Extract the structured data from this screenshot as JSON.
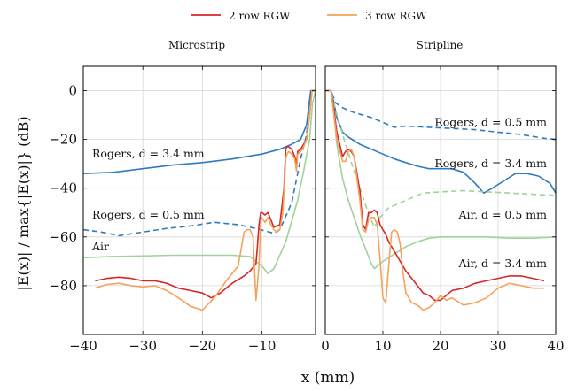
{
  "legend": [
    {
      "label": "2 row RGW",
      "color": "#d62728"
    },
    {
      "label": "3 row RGW",
      "color": "#f5a25d"
    }
  ],
  "xlabel": "x (mm)",
  "ylabel": "|E(x)| / max{|E(x)|} (dB)",
  "chart_data": [
    {
      "type": "line",
      "title": "Microstrip",
      "xlim": [
        -40,
        -1
      ],
      "ylim": [
        -100,
        10
      ],
      "xticks": [
        -40,
        -30,
        -20,
        -10
      ],
      "yticks": [
        0,
        -20,
        -40,
        -60,
        -80
      ],
      "grid": true,
      "annotations": [
        {
          "text": "Rogers, d = 3.4 mm",
          "x": -39,
          "y": -26
        },
        {
          "text": "Rogers, d = 0.5 mm",
          "x": -39,
          "y": -51
        },
        {
          "text": "Air",
          "x": -39,
          "y": -64
        }
      ],
      "series": [
        {
          "name": "Rogers, d = 3.4 mm",
          "color": "#2f7bbf",
          "dash": false,
          "x": [
            -40,
            -35,
            -30,
            -25,
            -20,
            -15,
            -10,
            -7,
            -5,
            -3.5,
            -2.5,
            -1.8,
            -1
          ],
          "y": [
            -34,
            -33.5,
            -32,
            -30.5,
            -29.5,
            -28,
            -26,
            -24,
            -22,
            -20,
            -14,
            0,
            0
          ]
        },
        {
          "name": "Rogers, d = 0.5 mm",
          "color": "#2f7bbf",
          "dash": true,
          "x": [
            -40,
            -37,
            -34,
            -30,
            -26,
            -22,
            -18,
            -14,
            -11,
            -8,
            -7,
            -5,
            -3.5,
            -2.5,
            -1.8,
            -1
          ],
          "y": [
            -57,
            -58,
            -59.5,
            -58,
            -56.5,
            -55.5,
            -54,
            -55,
            -56.5,
            -58.5,
            -57,
            -46,
            -28,
            -18,
            0,
            0
          ]
        },
        {
          "name": "Air",
          "color": "#9fd39a",
          "dash": false,
          "x": [
            -40,
            -35,
            -30,
            -25,
            -20,
            -15,
            -12,
            -10,
            -9,
            -8,
            -6,
            -4,
            -3,
            -2,
            -1.5,
            -1
          ],
          "y": [
            -68.5,
            -68,
            -67.8,
            -67.5,
            -67.5,
            -67.5,
            -68,
            -72,
            -75,
            -73,
            -62,
            -45,
            -33,
            -20,
            -5,
            0
          ]
        },
        {
          "name": "2 row RGW",
          "color": "#d62728",
          "dash": false,
          "x": [
            -38,
            -36,
            -34,
            -32,
            -30,
            -28,
            -26,
            -24,
            -22,
            -20,
            -18.5,
            -17,
            -15,
            -13,
            -12,
            -11,
            -10.8,
            -10.5,
            -10.2,
            -10,
            -9.5,
            -9,
            -8.5,
            -8,
            -7,
            -6.3,
            -6,
            -5.8,
            -5.5,
            -5,
            -4.5,
            -4.2,
            -4,
            -3.5,
            -3,
            -2.5,
            -2,
            -1.6,
            -1.3,
            -1
          ],
          "y": [
            -78,
            -77,
            -76.5,
            -77,
            -78,
            -78,
            -79,
            -81,
            -82,
            -83,
            -85,
            -83,
            -79,
            -76,
            -74,
            -71,
            -65,
            -55,
            -50,
            -50,
            -51,
            -50,
            -53,
            -56,
            -55,
            -40,
            -24,
            -23,
            -23,
            -24,
            -27,
            -30,
            -25,
            -24,
            -22,
            -20,
            -10,
            0,
            0,
            0
          ]
        },
        {
          "name": "3 row RGW",
          "color": "#f5a25d",
          "dash": false,
          "x": [
            -38,
            -36,
            -34,
            -32,
            -30,
            -28,
            -26,
            -24,
            -22,
            -20,
            -18,
            -16,
            -14,
            -13,
            -12.5,
            -12,
            -11.5,
            -11,
            -10.5,
            -10.2,
            -10,
            -9.5,
            -9,
            -8.5,
            -8,
            -7.5,
            -7,
            -6.5,
            -6,
            -5.8,
            -5.5,
            -5,
            -4.5,
            -4.2,
            -4,
            -3.5,
            -3,
            -2.5,
            -2,
            -1.6,
            -1.3,
            -1
          ],
          "y": [
            -81,
            -79.5,
            -79,
            -80,
            -80.5,
            -80,
            -82,
            -85,
            -88.5,
            -90,
            -85,
            -78,
            -72,
            -58,
            -57,
            -57,
            -60,
            -86,
            -72,
            -53,
            -52,
            -54,
            -52,
            -55,
            -57,
            -58,
            -57,
            -50,
            -28,
            -26,
            -25,
            -26,
            -28,
            -33,
            -26,
            -25,
            -23,
            -20,
            -10,
            0,
            0,
            0
          ]
        }
      ]
    },
    {
      "type": "line",
      "title": "Stripline",
      "xlim": [
        0,
        40
      ],
      "ylim": [
        -100,
        10
      ],
      "xticks": [
        0,
        10,
        20,
        30,
        40
      ],
      "yticks": [
        0,
        -20,
        -40,
        -60,
        -80
      ],
      "grid": true,
      "annotations": [
        {
          "text": "Rogers, d = 0.5 mm",
          "x": 40,
          "y": -13
        },
        {
          "text": "Rogers, d = 3.4 mm",
          "x": 40,
          "y": -30
        },
        {
          "text": "Air, d = 0.5 mm",
          "x": 40,
          "y": -51
        },
        {
          "text": "Air, d = 3.4 mm",
          "x": 40,
          "y": -71
        }
      ],
      "series": [
        {
          "name": "Rogers, d = 0.5 mm",
          "color": "#2f7bbf",
          "dash": true,
          "x": [
            0,
            0.5,
            1,
            1.8,
            3,
            5,
            8,
            10,
            12,
            14,
            18,
            22,
            26,
            30,
            34,
            38,
            40
          ],
          "y": [
            0,
            0,
            0,
            -5,
            -7,
            -9,
            -11,
            -13,
            -15,
            -14.5,
            -15,
            -15.5,
            -16,
            -17,
            -18,
            -19.5,
            -20
          ]
        },
        {
          "name": "Rogers, d = 3.4 mm",
          "color": "#2f7bbf",
          "dash": false,
          "x": [
            0,
            0.5,
            1,
            1.5,
            2,
            3,
            4,
            6,
            8,
            10,
            12,
            14,
            16,
            18,
            20,
            22,
            24,
            26,
            27.5,
            29,
            31,
            33,
            35,
            37,
            39,
            40
          ],
          "y": [
            0,
            0,
            0,
            -5,
            -11,
            -17,
            -19,
            -22,
            -24,
            -26,
            -28,
            -29.5,
            -31,
            -32,
            -32,
            -32,
            -33.5,
            -38,
            -42,
            -40,
            -37,
            -34,
            -34,
            -35,
            -38,
            -42
          ]
        },
        {
          "name": "Air, d = 0.5 mm",
          "color": "#9fd39a",
          "dash": true,
          "x": [
            0,
            1,
            1.8,
            3,
            5,
            7,
            8.5,
            9.5,
            11,
            13,
            15,
            17,
            20,
            24,
            28,
            32,
            36,
            40
          ],
          "y": [
            0,
            0,
            -8,
            -18,
            -33,
            -47,
            -56,
            -52,
            -48,
            -46,
            -44,
            -42,
            -41.5,
            -41,
            -41.5,
            -42,
            -42.5,
            -43
          ]
        },
        {
          "name": "Air, d = 3.4 mm",
          "color": "#9fd39a",
          "dash": false,
          "x": [
            0,
            1,
            1.5,
            2,
            3,
            4,
            5,
            6,
            7,
            8,
            8.5,
            9,
            10,
            12,
            14,
            16,
            18,
            20,
            24,
            28,
            32,
            36,
            40
          ],
          "y": [
            0,
            0,
            -10,
            -22,
            -36,
            -45,
            -52,
            -59,
            -65,
            -71,
            -73,
            -72,
            -70,
            -67,
            -64,
            -62,
            -60.5,
            -60,
            -60,
            -60,
            -60.5,
            -60.5,
            -60
          ]
        },
        {
          "name": "2 row RGW",
          "color": "#d62728",
          "dash": false,
          "x": [
            0,
            1,
            1.5,
            2,
            3,
            3.5,
            4,
            4.5,
            5,
            6,
            6.5,
            7,
            7.5,
            8,
            8.5,
            9,
            9.5,
            10,
            10.5,
            11,
            12,
            13,
            14,
            15,
            16,
            17,
            18,
            19,
            20,
            22,
            24,
            26,
            28,
            30,
            32,
            34,
            36,
            38
          ],
          "y": [
            0,
            0,
            -8,
            -17,
            -27,
            -25,
            -24,
            -25,
            -27,
            -41,
            -55,
            -57,
            -50,
            -50,
            -49,
            -50,
            -55,
            -57,
            -59,
            -62,
            -66,
            -70,
            -74,
            -77,
            -80,
            -83,
            -84,
            -86,
            -86,
            -82,
            -81,
            -79,
            -78,
            -77,
            -76,
            -76,
            -77,
            -78
          ]
        },
        {
          "name": "3 row RGW",
          "color": "#f5a25d",
          "dash": false,
          "x": [
            0,
            1,
            1.5,
            2,
            3,
            3.5,
            4,
            4.5,
            5,
            6,
            6.5,
            7,
            7.5,
            8,
            8.5,
            9,
            9.5,
            10,
            10.5,
            11,
            11.5,
            12,
            12.5,
            13,
            13.5,
            14,
            15,
            16,
            17,
            18,
            19,
            20,
            21,
            22,
            24,
            26,
            28,
            30,
            32,
            34,
            36,
            38
          ],
          "y": [
            0,
            0,
            -10,
            -20,
            -29,
            -29,
            -25,
            -24,
            -27,
            -45,
            -57,
            -58,
            -53,
            -52,
            -52,
            -55,
            -69,
            -85,
            -87,
            -72,
            -58,
            -57,
            -58,
            -63,
            -75,
            -83,
            -87,
            -88,
            -90,
            -89,
            -87,
            -84,
            -86,
            -85,
            -88,
            -87,
            -85,
            -81,
            -79,
            -80,
            -81,
            -81
          ]
        }
      ]
    }
  ]
}
